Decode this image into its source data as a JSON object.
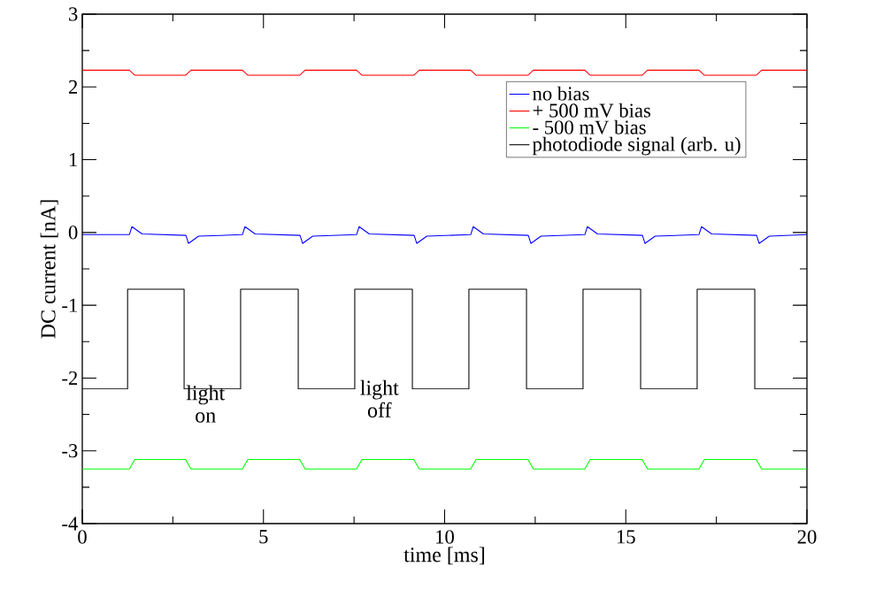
{
  "chart_data": {
    "type": "line",
    "xlabel": "time [ms]",
    "ylabel": "DC current [nA]",
    "xlim": [
      0,
      20
    ],
    "ylim": [
      -4,
      3
    ],
    "xticks": [
      0,
      5,
      10,
      15,
      20
    ],
    "yticks": [
      -4,
      -3,
      -2,
      -1,
      0,
      1,
      2,
      3
    ],
    "legend": "top right",
    "grid": false,
    "marker": "none",
    "line_style": "solid",
    "annotations": [
      "light on",
      "light off"
    ],
    "series": [
      {
        "name": "no bias",
        "color": "#0000ff",
        "x": [
          0,
          1.3,
          1.37,
          1.65,
          2.86,
          2.93,
          3.21,
          4.42,
          4.49,
          4.77,
          6.01,
          6.08,
          6.36,
          7.57,
          7.64,
          7.92,
          9.16,
          9.23,
          9.51,
          10.72,
          10.79,
          11.07,
          12.31,
          12.38,
          12.66,
          13.87,
          13.94,
          14.22,
          15.46,
          15.53,
          15.81,
          17.02,
          17.09,
          17.37,
          18.61,
          18.68,
          18.96,
          20
        ],
        "values": [
          -0.03,
          -0.03,
          0.08,
          -0.02,
          -0.04,
          -0.15,
          -0.05,
          -0.03,
          0.08,
          -0.02,
          -0.04,
          -0.15,
          -0.05,
          -0.03,
          0.08,
          -0.02,
          -0.04,
          -0.15,
          -0.05,
          -0.03,
          0.08,
          -0.02,
          -0.04,
          -0.15,
          -0.05,
          -0.03,
          0.08,
          -0.02,
          -0.04,
          -0.15,
          -0.05,
          -0.03,
          0.08,
          -0.02,
          -0.04,
          -0.15,
          -0.05,
          -0.03
        ]
      },
      {
        "name": "+ 500 mV bias",
        "color": "#ff0000",
        "x": [
          0,
          1.3,
          1.45,
          2.85,
          3.0,
          4.42,
          4.57,
          6.0,
          6.15,
          7.57,
          7.72,
          9.15,
          9.3,
          10.72,
          10.87,
          12.3,
          12.45,
          13.87,
          14.02,
          15.45,
          15.6,
          17.02,
          17.17,
          18.6,
          18.75,
          20
        ],
        "values": [
          2.23,
          2.23,
          2.16,
          2.16,
          2.23,
          2.23,
          2.16,
          2.16,
          2.23,
          2.23,
          2.16,
          2.16,
          2.23,
          2.23,
          2.16,
          2.16,
          2.23,
          2.23,
          2.16,
          2.16,
          2.23,
          2.23,
          2.16,
          2.16,
          2.23,
          2.23
        ]
      },
      {
        "name": "- 500 mV bias",
        "color": "#00ff00",
        "x": [
          0,
          1.3,
          1.45,
          2.85,
          3.0,
          4.42,
          4.57,
          6.0,
          6.15,
          7.57,
          7.72,
          9.15,
          9.3,
          10.72,
          10.87,
          12.3,
          12.45,
          13.87,
          14.02,
          15.45,
          15.6,
          17.02,
          17.17,
          18.6,
          18.75,
          20
        ],
        "values": [
          -3.25,
          -3.25,
          -3.12,
          -3.12,
          -3.25,
          -3.25,
          -3.12,
          -3.12,
          -3.25,
          -3.25,
          -3.12,
          -3.12,
          -3.25,
          -3.25,
          -3.12,
          -3.12,
          -3.25,
          -3.25,
          -3.12,
          -3.12,
          -3.25,
          -3.25,
          -3.12,
          -3.12,
          -3.25,
          -3.25
        ]
      },
      {
        "name": "photodiode signal (arb. u)",
        "color": "#000000",
        "x": [
          0,
          1.25,
          1.25,
          2.81,
          2.81,
          4.37,
          4.37,
          5.96,
          5.96,
          7.52,
          7.52,
          9.11,
          9.11,
          10.67,
          10.67,
          12.26,
          12.26,
          13.82,
          13.82,
          15.41,
          15.41,
          16.97,
          16.97,
          18.56,
          18.56,
          20
        ],
        "values": [
          -2.15,
          -2.15,
          -0.78,
          -0.78,
          -2.15,
          -2.15,
          -0.78,
          -0.78,
          -2.15,
          -2.15,
          -0.78,
          -0.78,
          -2.15,
          -2.15,
          -0.78,
          -0.78,
          -2.15,
          -2.15,
          -0.78,
          -0.78,
          -2.15,
          -2.15,
          -0.78,
          -0.78,
          -2.15,
          -2.15
        ]
      }
    ]
  }
}
